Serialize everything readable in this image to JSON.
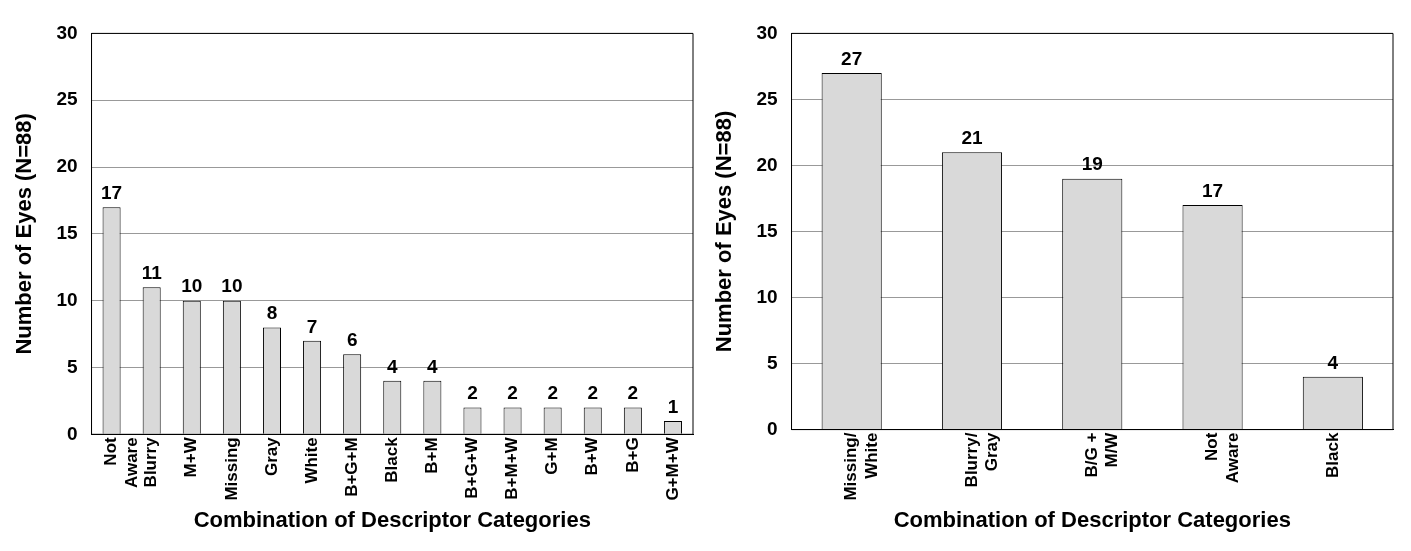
{
  "chart_data": [
    {
      "type": "bar",
      "xlabel": "Combination of Descriptor Categories",
      "ylabel": "Number of Eyes (N=88)",
      "categories": [
        "Not\nAware",
        "Blurry",
        "M+W",
        "Missing",
        "Gray",
        "White",
        "B+G+M",
        "Black",
        "B+M",
        "B+G+W",
        "B+M+W",
        "G+M",
        "B+W",
        "B+G",
        "G+M+W"
      ],
      "values": [
        17,
        11,
        10,
        10,
        8,
        7,
        6,
        4,
        4,
        2,
        2,
        2,
        2,
        2,
        1
      ],
      "color": "#d9d9d9",
      "ylim": [
        0,
        30
      ],
      "yticks": [
        0,
        5,
        10,
        15,
        20,
        25,
        30
      ],
      "grid": "y",
      "data_labels": true,
      "legend": false
    },
    {
      "type": "bar",
      "xlabel": "Combination of Descriptor Categories",
      "ylabel": "Number of Eyes (N=88)",
      "categories": [
        "Missing/\nWhite",
        "Blurry/\nGray",
        "B/G +\nM/W",
        "Not\nAware",
        "Black"
      ],
      "values": [
        27,
        21,
        19,
        17,
        4
      ],
      "color": "#d9d9d9",
      "ylim": [
        0,
        30
      ],
      "yticks": [
        0,
        5,
        10,
        15,
        20,
        25,
        30
      ],
      "grid": "y",
      "data_labels": true,
      "legend": false
    }
  ]
}
